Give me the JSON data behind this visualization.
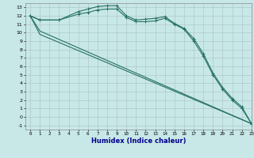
{
  "background_color": "#c8e8e8",
  "grid_color": "#b0c8c8",
  "line_color": "#267060",
  "xlabel": "Humidex (Indice chaleur)",
  "xlabel_color": "#00008b",
  "xlim": [
    -0.5,
    23
  ],
  "ylim": [
    -1.5,
    13.5
  ],
  "xticks": [
    0,
    1,
    2,
    3,
    4,
    5,
    6,
    7,
    8,
    9,
    10,
    11,
    12,
    13,
    14,
    15,
    16,
    17,
    18,
    19,
    20,
    21,
    22,
    23
  ],
  "yticks": [
    -1,
    0,
    1,
    2,
    3,
    4,
    5,
    6,
    7,
    8,
    9,
    10,
    11,
    12,
    13
  ],
  "series": [
    {
      "x": [
        0,
        1,
        3,
        5,
        6,
        7,
        8,
        9,
        10,
        11,
        12,
        13,
        14,
        15,
        16,
        17,
        18,
        19,
        20,
        21,
        22,
        23
      ],
      "y": [
        12,
        11.5,
        11.5,
        12.5,
        12.8,
        13.1,
        13.2,
        13.2,
        12.0,
        11.5,
        11.6,
        11.7,
        11.9,
        11.1,
        10.5,
        9.3,
        7.5,
        5.2,
        3.5,
        2.2,
        1.2,
        -0.8
      ],
      "marker": "+"
    },
    {
      "x": [
        0,
        1,
        3,
        5,
        6,
        7,
        8,
        9,
        10,
        11,
        12,
        13,
        14,
        15,
        16,
        17,
        18,
        19,
        20,
        21,
        22,
        23
      ],
      "y": [
        12,
        11.5,
        11.5,
        12.2,
        12.4,
        12.7,
        12.8,
        12.8,
        11.8,
        11.3,
        11.3,
        11.4,
        11.7,
        11.0,
        10.4,
        9.0,
        7.2,
        5.0,
        3.3,
        2.0,
        1.0,
        -0.8
      ],
      "marker": "+"
    },
    {
      "x": [
        0,
        1,
        23
      ],
      "y": [
        12,
        10.2,
        -0.8
      ],
      "marker": null
    },
    {
      "x": [
        0,
        1,
        23
      ],
      "y": [
        12,
        9.8,
        -0.8
      ],
      "marker": null
    }
  ]
}
